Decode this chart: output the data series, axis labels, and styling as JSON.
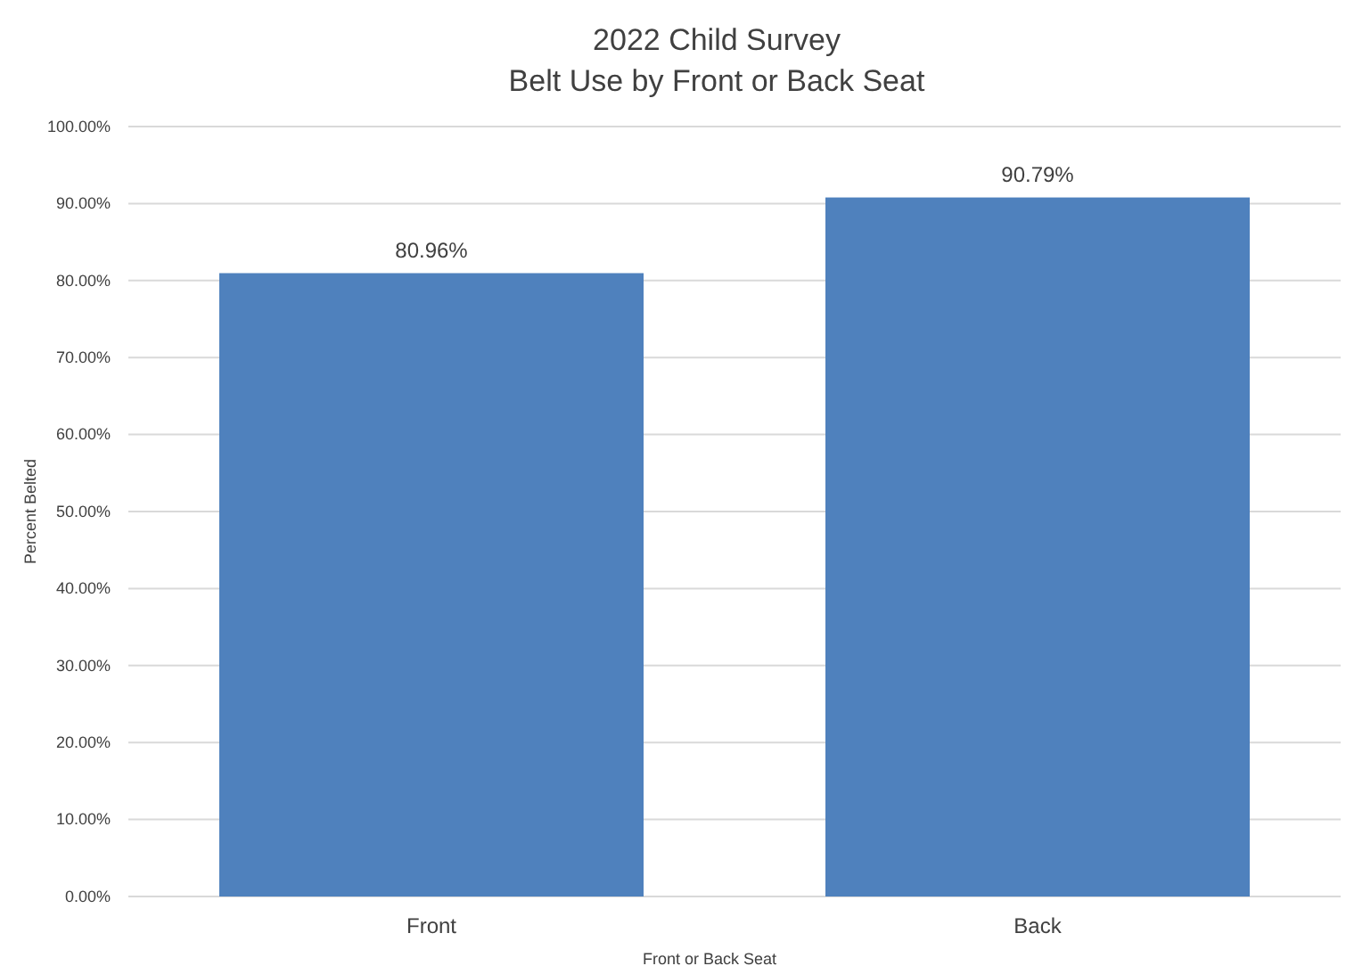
{
  "chart_data": {
    "type": "bar",
    "title": "2022 Child Survey",
    "subtitle": "Belt Use by Front or Back Seat",
    "xlabel": "Front or Back Seat",
    "ylabel": "Percent Belted",
    "categories": [
      "Front",
      "Back"
    ],
    "values": [
      80.96,
      90.79
    ],
    "value_labels": [
      "80.96%",
      "90.79%"
    ],
    "color": "#4f81bd",
    "ylim": [
      0,
      100
    ],
    "yticks": [
      {
        "value": 0,
        "label": "0.00%"
      },
      {
        "value": 10,
        "label": "10.00%"
      },
      {
        "value": 20,
        "label": "20.00%"
      },
      {
        "value": 30,
        "label": "30.00%"
      },
      {
        "value": 40,
        "label": "40.00%"
      },
      {
        "value": 50,
        "label": "50.00%"
      },
      {
        "value": 60,
        "label": "60.00%"
      },
      {
        "value": 70,
        "label": "70.00%"
      },
      {
        "value": 80,
        "label": "80.00%"
      },
      {
        "value": 90,
        "label": "90.00%"
      },
      {
        "value": 100,
        "label": "100.00%"
      }
    ],
    "grid": "y"
  }
}
